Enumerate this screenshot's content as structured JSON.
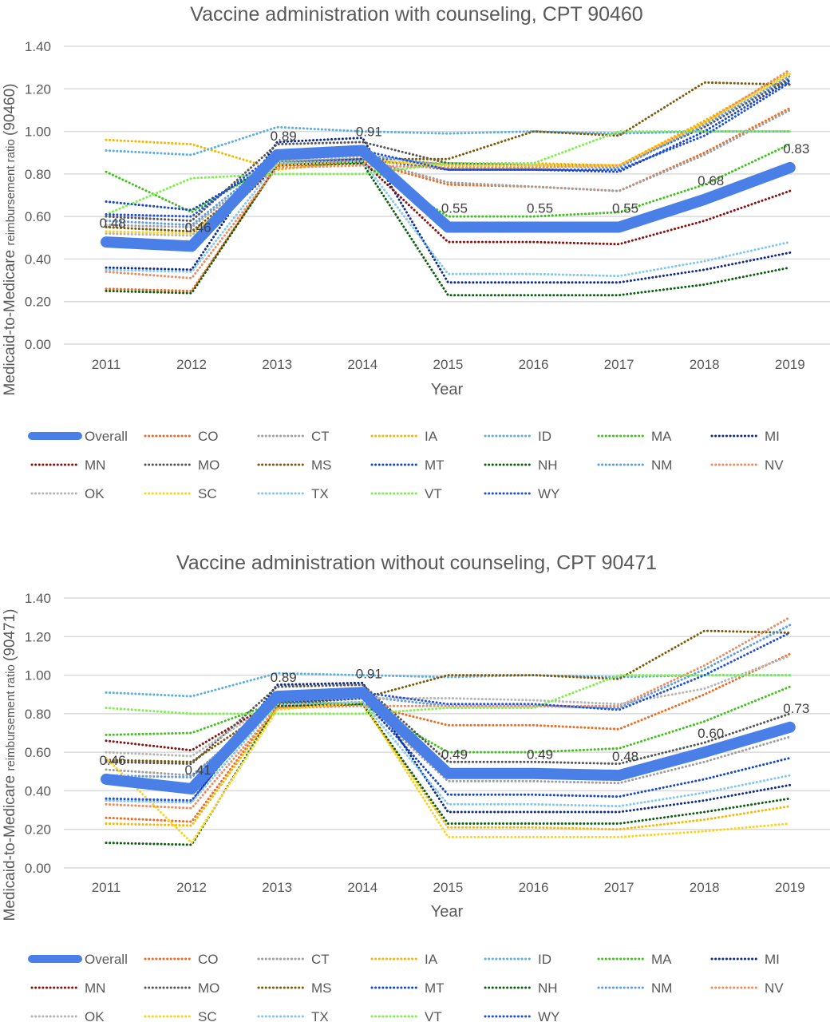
{
  "chart_data": [
    {
      "type": "line",
      "title": "Vaccine administration with counseling, CPT 90460",
      "xlabel": "Year",
      "ylabel_main": "Medicaid-to-Medicare",
      "ylabel_small": "reimbursement ratio",
      "ylabel_suffix": "(90460)",
      "x": [
        "2011",
        "2012",
        "2013",
        "2014",
        "2015",
        "2016",
        "2017",
        "2018",
        "2019"
      ],
      "ylim": [
        0,
        1.4
      ],
      "yticks": [
        "0.00",
        "0.20",
        "0.40",
        "0.60",
        "0.80",
        "1.00",
        "1.20",
        "1.40"
      ],
      "grid": true,
      "legend_position": "bottom",
      "data_labels": [
        "0.48",
        "0.46",
        "0.89",
        "0.91",
        "0.55",
        "0.55",
        "0.55",
        "0.68",
        "0.83"
      ],
      "series": [
        {
          "name": "Overall",
          "color": "#4a7fe8",
          "values": [
            0.48,
            0.46,
            0.89,
            0.91,
            0.55,
            0.55,
            0.55,
            0.68,
            0.83
          ]
        },
        {
          "name": "CO",
          "color": "#f26a21",
          "values": [
            0.26,
            0.25,
            0.84,
            0.86,
            0.75,
            0.74,
            0.72,
            0.9,
            1.11
          ]
        },
        {
          "name": "CT",
          "color": "#9e9e9e",
          "values": [
            0.56,
            0.55,
            0.86,
            0.87,
            0.76,
            0.74,
            0.72,
            0.89,
            1.1
          ]
        },
        {
          "name": "IA",
          "color": "#f5b700",
          "values": [
            0.96,
            0.94,
            0.82,
            0.86,
            0.85,
            0.85,
            0.84,
            1.05,
            1.28
          ]
        },
        {
          "name": "ID",
          "color": "#5aaee0",
          "values": [
            0.91,
            0.89,
            1.02,
            1.0,
            0.99,
            1.0,
            0.99,
            1.0,
            1.0
          ]
        },
        {
          "name": "MA",
          "color": "#3fc21c",
          "values": [
            0.81,
            0.62,
            0.86,
            0.85,
            0.6,
            0.6,
            0.62,
            0.75,
            0.94
          ]
        },
        {
          "name": "MI",
          "color": "#102a8c",
          "values": [
            0.36,
            0.35,
            0.95,
            0.97,
            0.29,
            0.29,
            0.29,
            0.35,
            0.43
          ]
        },
        {
          "name": "MN",
          "color": "#8b0e0e",
          "values": [
            0.47,
            0.46,
            0.84,
            0.86,
            0.48,
            0.48,
            0.47,
            0.58,
            0.72
          ]
        },
        {
          "name": "MO",
          "color": "#555555",
          "values": [
            0.6,
            0.58,
            0.94,
            0.95,
            0.85,
            0.84,
            0.84,
            1.02,
            1.25
          ]
        },
        {
          "name": "MS",
          "color": "#7a5a08",
          "values": [
            0.55,
            0.53,
            0.85,
            0.87,
            0.87,
            1.0,
            0.98,
            1.23,
            1.22
          ]
        },
        {
          "name": "MT",
          "color": "#1446c8",
          "values": [
            0.67,
            0.63,
            0.86,
            0.87,
            0.82,
            0.82,
            0.81,
            1.0,
            1.24
          ]
        },
        {
          "name": "NH",
          "color": "#0b5e10",
          "values": [
            0.25,
            0.24,
            0.84,
            0.85,
            0.23,
            0.23,
            0.23,
            0.28,
            0.36
          ]
        },
        {
          "name": "NM",
          "color": "#5b9be8",
          "values": [
            0.58,
            0.56,
            0.88,
            0.89,
            0.84,
            0.84,
            0.83,
            1.03,
            1.26
          ]
        },
        {
          "name": "NV",
          "color": "#f08a5d",
          "values": [
            0.34,
            0.31,
            0.83,
            0.84,
            0.83,
            0.83,
            0.84,
            1.04,
            1.29
          ]
        },
        {
          "name": "OK",
          "color": "#b5b5b5",
          "values": [
            0.52,
            0.51,
            0.86,
            0.88,
            0.55,
            0.55,
            0.54,
            0.66,
            0.82
          ]
        },
        {
          "name": "SC",
          "color": "#ffd21a",
          "values": [
            0.53,
            0.52,
            0.84,
            0.86,
            0.84,
            0.84,
            0.84,
            1.04,
            1.27
          ]
        },
        {
          "name": "TX",
          "color": "#7fc7f0",
          "values": [
            0.35,
            0.34,
            0.85,
            0.86,
            0.33,
            0.33,
            0.32,
            0.39,
            0.48
          ]
        },
        {
          "name": "VT",
          "color": "#7ef04a",
          "values": [
            0.61,
            0.78,
            0.8,
            0.8,
            0.85,
            0.85,
            1.0,
            1.0,
            1.0
          ]
        },
        {
          "name": "WY",
          "color": "#1f4fe0",
          "values": [
            0.61,
            0.6,
            0.9,
            0.91,
            0.82,
            0.82,
            0.82,
            0.98,
            1.23
          ]
        }
      ]
    },
    {
      "type": "line",
      "title": "Vaccine administration without counseling, CPT 90471",
      "xlabel": "Year",
      "ylabel_main": "Medicaid-to-Medicare",
      "ylabel_small": "reimbursement ratio",
      "ylabel_suffix": "(90471)",
      "x": [
        "2011",
        "2012",
        "2013",
        "2014",
        "2015",
        "2016",
        "2017",
        "2018",
        "2019"
      ],
      "ylim": [
        0,
        1.4
      ],
      "yticks": [
        "0.00",
        "0.20",
        "0.40",
        "0.60",
        "0.80",
        "1.00",
        "1.20",
        "1.40"
      ],
      "grid": true,
      "legend_position": "bottom",
      "data_labels": [
        "0.46",
        "0.41",
        "0.89",
        "0.91",
        "0.49",
        "0.49",
        "0.48",
        "0.60",
        "0.73"
      ],
      "series": [
        {
          "name": "Overall",
          "color": "#4a7fe8",
          "values": [
            0.46,
            0.41,
            0.89,
            0.91,
            0.49,
            0.49,
            0.48,
            0.6,
            0.73
          ]
        },
        {
          "name": "CO",
          "color": "#f26a21",
          "values": [
            0.26,
            0.24,
            0.84,
            0.85,
            0.74,
            0.74,
            0.72,
            0.9,
            1.11
          ]
        },
        {
          "name": "CT",
          "color": "#9e9e9e",
          "values": [
            0.51,
            0.48,
            0.85,
            0.86,
            0.45,
            0.45,
            0.44,
            0.55,
            0.68
          ]
        },
        {
          "name": "IA",
          "color": "#f5b700",
          "values": [
            0.23,
            0.22,
            0.83,
            0.85,
            0.21,
            0.21,
            0.2,
            0.25,
            0.32
          ]
        },
        {
          "name": "ID",
          "color": "#5aaee0",
          "values": [
            0.91,
            0.89,
            1.01,
            1.0,
            0.99,
            1.0,
            0.99,
            1.0,
            1.0
          ]
        },
        {
          "name": "MA",
          "color": "#3fc21c",
          "values": [
            0.69,
            0.7,
            0.86,
            0.85,
            0.6,
            0.6,
            0.62,
            0.76,
            0.94
          ]
        },
        {
          "name": "MI",
          "color": "#102a8c",
          "values": [
            0.35,
            0.34,
            0.95,
            0.96,
            0.29,
            0.29,
            0.29,
            0.35,
            0.43
          ]
        },
        {
          "name": "MN",
          "color": "#8b0e0e",
          "values": [
            0.66,
            0.61,
            0.87,
            0.88,
            0.48,
            0.48,
            0.47,
            0.58,
            0.72
          ]
        },
        {
          "name": "MO",
          "color": "#555555",
          "values": [
            0.55,
            0.54,
            0.94,
            0.95,
            0.55,
            0.55,
            0.54,
            0.65,
            0.8
          ]
        },
        {
          "name": "MS",
          "color": "#7a5a08",
          "values": [
            0.56,
            0.55,
            0.85,
            0.88,
            1.0,
            1.0,
            0.98,
            1.23,
            1.22
          ]
        },
        {
          "name": "MT",
          "color": "#1446c8",
          "values": [
            0.44,
            0.43,
            0.86,
            0.88,
            0.38,
            0.38,
            0.37,
            0.46,
            0.57
          ]
        },
        {
          "name": "NH",
          "color": "#0b5e10",
          "values": [
            0.13,
            0.12,
            0.84,
            0.85,
            0.23,
            0.23,
            0.23,
            0.29,
            0.36
          ]
        },
        {
          "name": "NM",
          "color": "#5b9be8",
          "values": [
            0.48,
            0.47,
            0.88,
            0.89,
            0.84,
            0.84,
            0.83,
            1.03,
            1.26
          ]
        },
        {
          "name": "NV",
          "color": "#f08a5d",
          "values": [
            0.33,
            0.31,
            0.83,
            0.84,
            0.84,
            0.84,
            0.84,
            1.05,
            1.3
          ]
        },
        {
          "name": "OK",
          "color": "#b5b5b5",
          "values": [
            0.6,
            0.58,
            0.87,
            0.88,
            0.88,
            0.87,
            0.85,
            0.93,
            1.1
          ]
        },
        {
          "name": "SC",
          "color": "#ffd21a",
          "values": [
            0.57,
            0.13,
            0.82,
            0.86,
            0.16,
            0.16,
            0.16,
            0.19,
            0.23
          ]
        },
        {
          "name": "TX",
          "color": "#7fc7f0",
          "values": [
            0.35,
            0.34,
            0.85,
            0.86,
            0.33,
            0.33,
            0.32,
            0.39,
            0.48
          ]
        },
        {
          "name": "VT",
          "color": "#7ef04a",
          "values": [
            0.83,
            0.8,
            0.8,
            0.8,
            0.83,
            0.83,
            1.0,
            1.0,
            1.0
          ]
        },
        {
          "name": "WY",
          "color": "#1f4fe0",
          "values": [
            0.36,
            0.35,
            0.9,
            0.91,
            0.85,
            0.85,
            0.82,
            1.0,
            1.22
          ]
        }
      ]
    }
  ]
}
